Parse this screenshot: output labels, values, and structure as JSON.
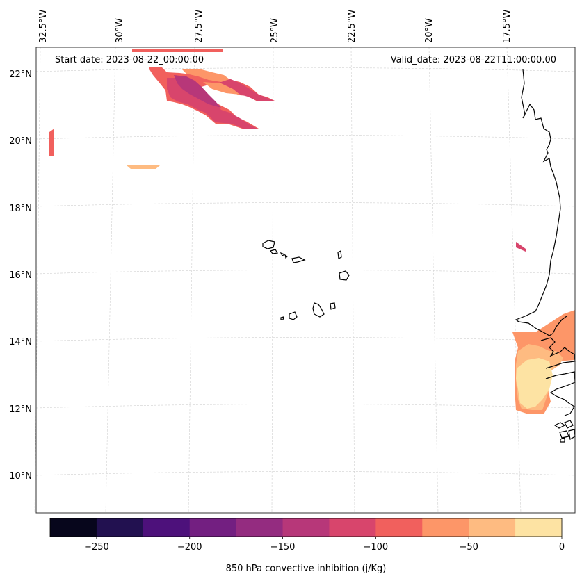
{
  "header": {
    "start_date": "Start date: 2023-08-22_00:00:00",
    "valid_date": "Valid_date: 2023-08-22T11:00:00.00"
  },
  "axes": {
    "longitude_labels": [
      "32.5°W",
      "30°W",
      "27.5°W",
      "25°W",
      "22.5°W",
      "20°W",
      "17.5°W"
    ],
    "latitude_labels": [
      "22°N",
      "20°N",
      "18°N",
      "16°N",
      "14°N",
      "12°N",
      "10°N"
    ]
  },
  "colorbar": {
    "title": "850 hPa convective inhibition (j/Kg)",
    "tick_labels": [
      "−250",
      "−200",
      "−150",
      "−100",
      "−50",
      "0"
    ],
    "bounds": [
      -275,
      -250,
      -225,
      -200,
      -175,
      -150,
      -125,
      -100,
      -75,
      -50,
      -25,
      0
    ],
    "colors": [
      "#07061c",
      "#221150",
      "#4d117b",
      "#731f81",
      "#942c80",
      "#b73779",
      "#d8456c",
      "#f1605d",
      "#fd9668",
      "#febb81",
      "#fde3a3"
    ]
  },
  "colors": {
    "coastline": "#000000",
    "gridline": "#cccccc",
    "frame": "#333333"
  }
}
